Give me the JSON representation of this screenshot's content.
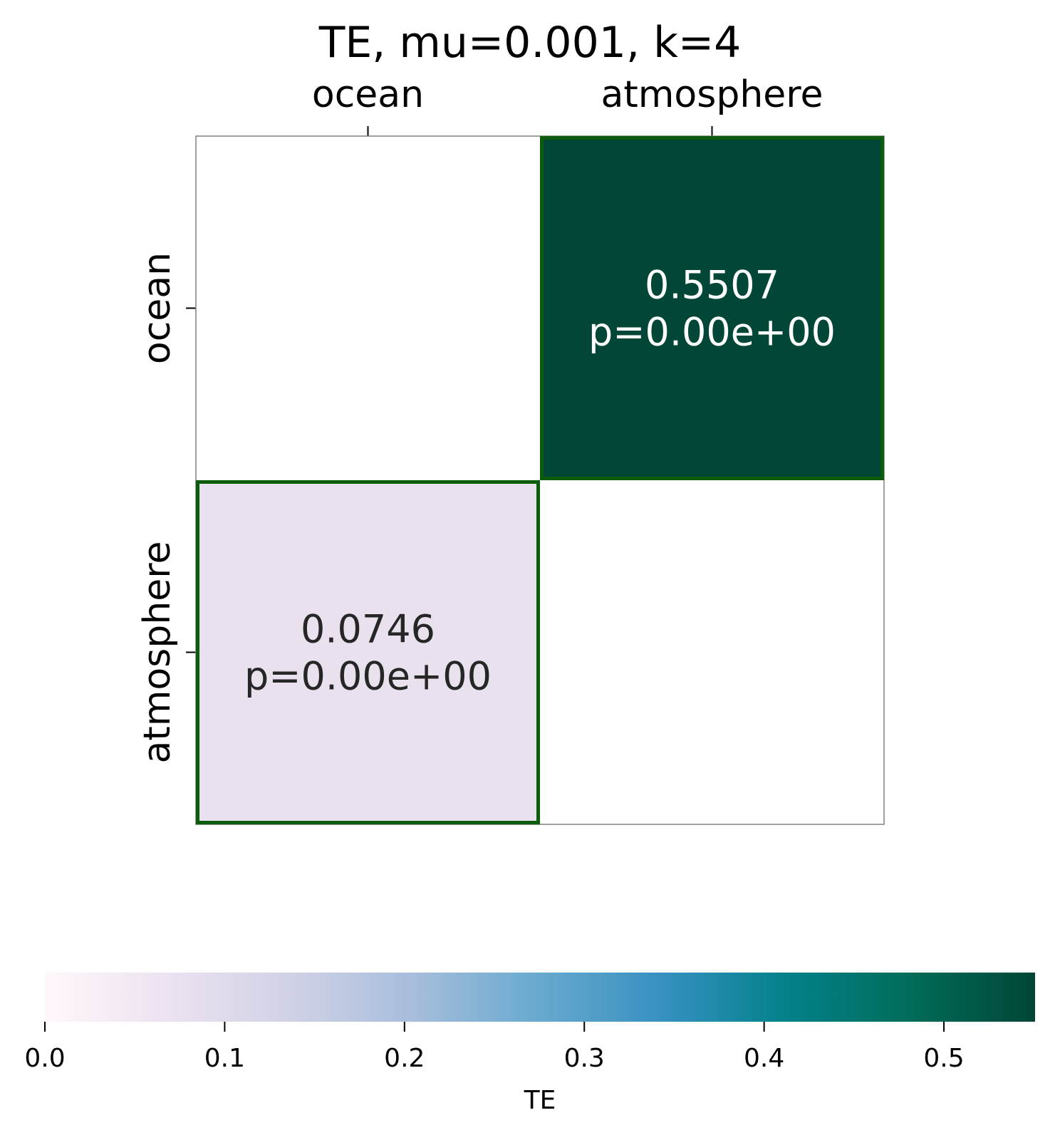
{
  "chart_data": {
    "type": "heatmap",
    "title": "TE, mu=0.001, k=4",
    "x_categories": [
      "ocean",
      "atmosphere"
    ],
    "y_categories": [
      "ocean",
      "atmosphere"
    ],
    "cells": [
      {
        "row": 0,
        "col": 0,
        "value": null,
        "annotation": null,
        "highlighted": false
      },
      {
        "row": 0,
        "col": 1,
        "value": 0.5507,
        "annotation": [
          "0.5507",
          "p=0.00e+00"
        ],
        "highlighted": true
      },
      {
        "row": 1,
        "col": 0,
        "value": 0.0746,
        "annotation": [
          "0.0746",
          "p=0.00e+00"
        ],
        "highlighted": true
      },
      {
        "row": 1,
        "col": 1,
        "value": null,
        "annotation": null,
        "highlighted": false
      }
    ],
    "colorbar": {
      "label": "TE",
      "range": [
        0,
        0.5507
      ],
      "ticks": [
        "0.0",
        "0.1",
        "0.2",
        "0.3",
        "0.4",
        "0.5"
      ],
      "tick_values": [
        0,
        0.1,
        0.2,
        0.3,
        0.4,
        0.5
      ],
      "colormap": "PuBuGn",
      "orientation": "horizontal",
      "placement": "bottom"
    },
    "colors": {
      "highlight_border": "#0b5d0b",
      "frame": "#808080",
      "text_dark": "#262626",
      "text_light": "#ffffff"
    }
  }
}
